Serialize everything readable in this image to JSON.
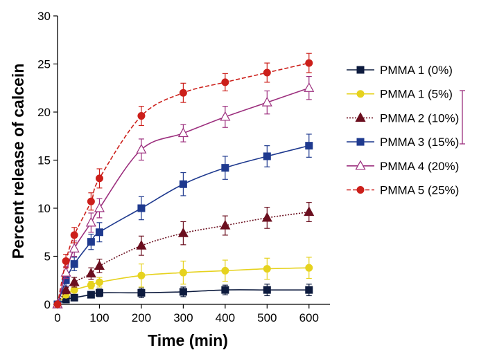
{
  "chart_data": {
    "type": "line",
    "title": "",
    "xlabel": "Time (min)",
    "ylabel": "Percent release of calcein",
    "xlim": [
      0,
      650
    ],
    "ylim": [
      0,
      30
    ],
    "xticks": [
      0,
      100,
      200,
      300,
      400,
      500,
      600
    ],
    "yticks": [
      0,
      5,
      10,
      15,
      20,
      25,
      30
    ],
    "grid": false,
    "legend_position": "right",
    "x": [
      0,
      20,
      40,
      80,
      100,
      200,
      300,
      400,
      500,
      600
    ],
    "series": [
      {
        "name": "PMMA 1 (0%)",
        "color": "#0d1b3e",
        "marker": "square-filled",
        "dash": "solid",
        "values": [
          0,
          0.5,
          0.7,
          1.0,
          1.2,
          1.2,
          1.3,
          1.5,
          1.5,
          1.5
        ],
        "errors": [
          0,
          0.3,
          0.3,
          0.3,
          0.4,
          0.5,
          0.5,
          0.5,
          0.6,
          0.6
        ]
      },
      {
        "name": "PMMA 1 (5%)",
        "color": "#e6d21e",
        "marker": "circle-filled",
        "dash": "solid",
        "values": [
          0,
          1.0,
          1.5,
          2.0,
          2.3,
          3.0,
          3.3,
          3.5,
          3.7,
          3.8
        ],
        "errors": [
          0,
          0.3,
          0.3,
          0.4,
          0.5,
          1.2,
          1.2,
          1.1,
          1.1,
          1.1
        ]
      },
      {
        "name": "PMMA 2 (10%)",
        "color": "#6b0f1f",
        "marker": "triangle-filled",
        "dash": "dotted",
        "values": [
          0,
          1.5,
          2.3,
          3.2,
          4.0,
          6.1,
          7.4,
          8.2,
          9.0,
          9.6
        ],
        "errors": [
          0,
          0.4,
          0.5,
          0.6,
          0.7,
          1.0,
          1.2,
          1.0,
          1.1,
          1.0
        ]
      },
      {
        "name": "PMMA 3 (15%)",
        "color": "#1f3a8f",
        "marker": "square-filled",
        "dash": "solid",
        "values": [
          0,
          2.5,
          4.2,
          6.5,
          7.5,
          10.0,
          12.5,
          14.2,
          15.4,
          16.5
        ],
        "errors": [
          0,
          0.6,
          0.7,
          0.8,
          1.0,
          1.2,
          1.2,
          1.2,
          1.1,
          1.2
        ]
      },
      {
        "name": "PMMA 4 (20%)",
        "color": "#9c2f7e",
        "marker": "triangle-open",
        "dash": "solid",
        "values": [
          0,
          3.3,
          5.8,
          8.5,
          10.0,
          16.1,
          17.8,
          19.5,
          21.0,
          22.5
        ],
        "errors": [
          0,
          0.6,
          0.8,
          1.0,
          1.0,
          1.1,
          0.9,
          1.1,
          1.2,
          1.2
        ]
      },
      {
        "name": "PMMA 5 (25%)",
        "color": "#cc1f1a",
        "marker": "circle-filled",
        "dash": "dashed",
        "values": [
          0,
          4.5,
          7.2,
          10.7,
          13.1,
          19.6,
          22.0,
          23.1,
          24.1,
          25.1
        ],
        "errors": [
          0,
          0.7,
          0.8,
          0.9,
          1.0,
          1.0,
          1.0,
          0.9,
          1.0,
          1.0
        ]
      }
    ],
    "legend_error_bar": {
      "color": "#9c2f7e"
    }
  }
}
